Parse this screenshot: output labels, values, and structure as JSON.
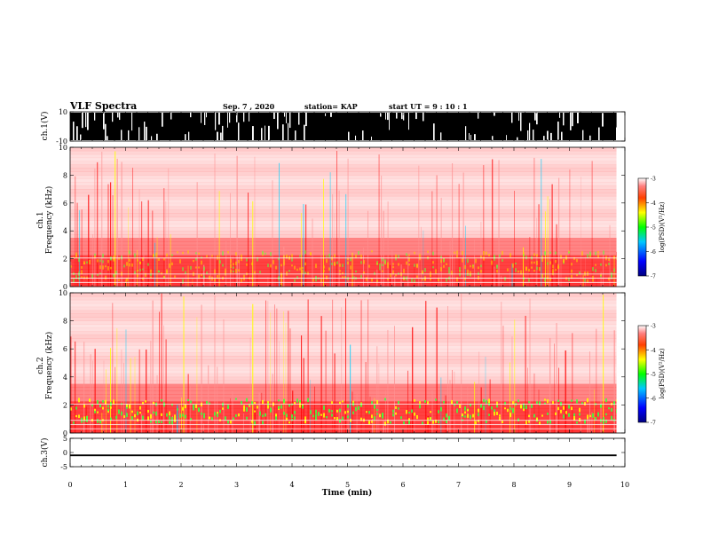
{
  "header": {
    "title": "VLF Spectra",
    "date": "Sep. 7 , 2020",
    "station": "station= KAP",
    "start": "start UT = 9 : 10 : 1"
  },
  "panels": {
    "ch1_wave": {
      "ylabel": "ch.1(V)",
      "yticks": [
        "10",
        "-10"
      ]
    },
    "ch1_spec": {
      "ylabel_top": "ch.1",
      "ylabel": "Frequency (kHz)",
      "yticks": [
        "0",
        "2",
        "4",
        "6",
        "8",
        "10"
      ]
    },
    "ch2_spec": {
      "ylabel_top": "ch.2",
      "ylabel": "Frequency (kHz)",
      "yticks": [
        "0",
        "2",
        "4",
        "6",
        "8",
        "10"
      ]
    },
    "ch3_wave": {
      "ylabel": "ch.3(V)",
      "yticks": [
        "5",
        "0",
        "-5"
      ]
    }
  },
  "colorbar": {
    "label": "log(PSD)(V²/Hz)",
    "ticks": [
      "-3",
      "-4",
      "-5",
      "-6",
      "-7"
    ]
  },
  "xaxis": {
    "label": "Time (min)",
    "ticks": [
      "0",
      "1",
      "2",
      "3",
      "4",
      "5",
      "6",
      "7",
      "8",
      "9",
      "10"
    ]
  },
  "chart_data": [
    {
      "type": "line",
      "title": "VLF Spectra",
      "ylabel": "ch.1(V)",
      "xlabel": "Time (min)",
      "xlim": [
        0,
        10
      ],
      "ylim": [
        -10,
        10
      ],
      "data_extent_min": 9.85,
      "description_values": "dense waveform saturating between -10 and 10 V"
    },
    {
      "type": "heatmap",
      "ylabel": "Frequency (kHz)",
      "xlim": [
        0,
        10
      ],
      "ylim": [
        0,
        10
      ],
      "colorscale_range": [
        -7,
        -3
      ],
      "colorbar_label": "log(PSD)(V²/Hz)",
      "strong_band_khz": [
        0.5,
        2
      ]
    },
    {
      "type": "heatmap",
      "ylabel": "Frequency (kHz)",
      "xlim": [
        0,
        10
      ],
      "ylim": [
        0,
        10
      ],
      "colorscale_range": [
        -7,
        -3
      ],
      "colorbar_label": "log(PSD)(V²/Hz)",
      "strong_band_khz": [
        0.8,
        1.9
      ]
    },
    {
      "type": "line",
      "ylabel": "ch.3(V)",
      "xlabel": "Time (min)",
      "xlim": [
        0,
        10
      ],
      "ylim": [
        -5,
        5
      ],
      "band_v": [
        -1.3,
        -0.7
      ]
    }
  ]
}
